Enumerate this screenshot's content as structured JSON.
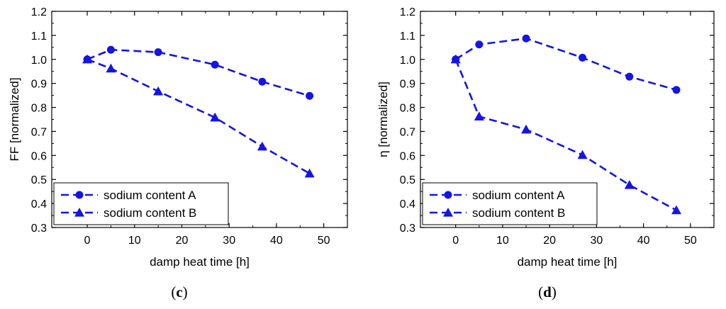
{
  "series_color": "#1414e6",
  "chart_data": [
    {
      "type": "line",
      "panel_label": {
        "open": "(",
        "letter": "c",
        "close": ")"
      },
      "xlabel": "damp heat time [h]",
      "ylabel": "FF [normalized]",
      "xlim": [
        -7.5,
        55
      ],
      "ylim": [
        0.3,
        1.2
      ],
      "xticks": [
        0,
        10,
        20,
        30,
        40,
        50
      ],
      "xtick_labels": [
        "0",
        "10",
        "20",
        "30",
        "40",
        "50"
      ],
      "yticks": [
        0.3,
        0.4,
        0.5,
        0.6,
        0.7,
        0.8,
        0.9,
        1.0,
        1.1,
        1.2
      ],
      "ytick_labels": [
        "0.3",
        "0.4",
        "0.5",
        "0.6",
        "0.7",
        "0.8",
        "0.9",
        "1.0",
        "1.1",
        "1.2"
      ],
      "legend_position": "bottom-left",
      "series": [
        {
          "name": "sodium content A",
          "marker": "circle",
          "x": [
            0,
            5,
            15,
            27,
            37,
            47
          ],
          "y": [
            1.0,
            1.04,
            1.03,
            0.978,
            0.907,
            0.848
          ]
        },
        {
          "name": "sodium content B",
          "marker": "triangle",
          "x": [
            0,
            5,
            15,
            27,
            37,
            47
          ],
          "y": [
            1.0,
            0.962,
            0.867,
            0.758,
            0.637,
            0.525
          ]
        }
      ]
    },
    {
      "type": "line",
      "panel_label": {
        "open": "(",
        "letter": "d",
        "close": ")"
      },
      "xlabel": "damp heat time [h]",
      "ylabel": "η [normalized]",
      "xlim": [
        -7.5,
        55
      ],
      "ylim": [
        0.3,
        1.2
      ],
      "xticks": [
        0,
        10,
        20,
        30,
        40,
        50
      ],
      "xtick_labels": [
        "0",
        "10",
        "20",
        "30",
        "40",
        "50"
      ],
      "yticks": [
        0.3,
        0.4,
        0.5,
        0.6,
        0.7,
        0.8,
        0.9,
        1.0,
        1.1,
        1.2
      ],
      "ytick_labels": [
        "0.3",
        "0.4",
        "0.5",
        "0.6",
        "0.7",
        "0.8",
        "0.9",
        "1.0",
        "1.1",
        "1.2"
      ],
      "legend_position": "bottom-left",
      "series": [
        {
          "name": "sodium content A",
          "marker": "circle",
          "x": [
            0,
            5,
            15,
            27,
            37,
            47
          ],
          "y": [
            1.0,
            1.062,
            1.087,
            1.007,
            0.928,
            0.873
          ]
        },
        {
          "name": "sodium content B",
          "marker": "triangle",
          "x": [
            0,
            5,
            15,
            27,
            37,
            47
          ],
          "y": [
            1.0,
            0.762,
            0.708,
            0.602,
            0.477,
            0.372
          ]
        }
      ]
    }
  ]
}
